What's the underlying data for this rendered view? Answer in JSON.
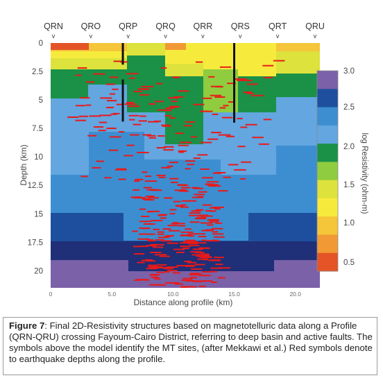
{
  "chart_data": {
    "type": "heatmap",
    "sites": [
      "QRN",
      "QRO",
      "QRP",
      "QRQ",
      "QRR",
      "QRS",
      "QRT",
      "QRU"
    ],
    "site_marker": "v",
    "ylabel": "Depth (km)",
    "y_ticks": [
      "0",
      "2.5",
      "5",
      "7.5",
      "10",
      "12.5",
      "15",
      "17.5",
      "20"
    ],
    "xlabel": "Distance along profile (km)",
    "x_ticks": [
      "0",
      "5.0",
      "10.0",
      "15.0",
      "20.0"
    ],
    "xlim": [
      0,
      22
    ],
    "ylim": [
      0,
      21.5
    ],
    "colorbar_label": "log Resistivity (ohm-m)",
    "colorbar_ticks": [
      "3.0",
      "2.5",
      "2.0",
      "1.5",
      "1.0",
      "0.5"
    ],
    "colorbar_colors": [
      "#7b61a8",
      "#1e4f9e",
      "#3d8ed1",
      "#63a6e0",
      "#1b9148",
      "#8fcc3f",
      "#dde23c",
      "#f6eb3c",
      "#f5c53a",
      "#f19a35",
      "#e45426"
    ],
    "faults": [
      {
        "x": 5.9,
        "from": 0,
        "to": 1.9
      },
      {
        "x": 5.9,
        "from": 3.2,
        "to": 6.9
      },
      {
        "x": 15.0,
        "from": 0,
        "to": 7.0
      }
    ]
  },
  "caption": {
    "label": "Figure 7",
    "text": ": Final 2D-Resistivity structures based on magnetotelluric data along a Profile (QRN-QRU) crossing Fayoum-Cairo District, referring to deep basin and active faults. The symbols above the model identify the MT sites, (after Mekkawi et al.) Red symbols denote to earthquake depths along the profile."
  }
}
